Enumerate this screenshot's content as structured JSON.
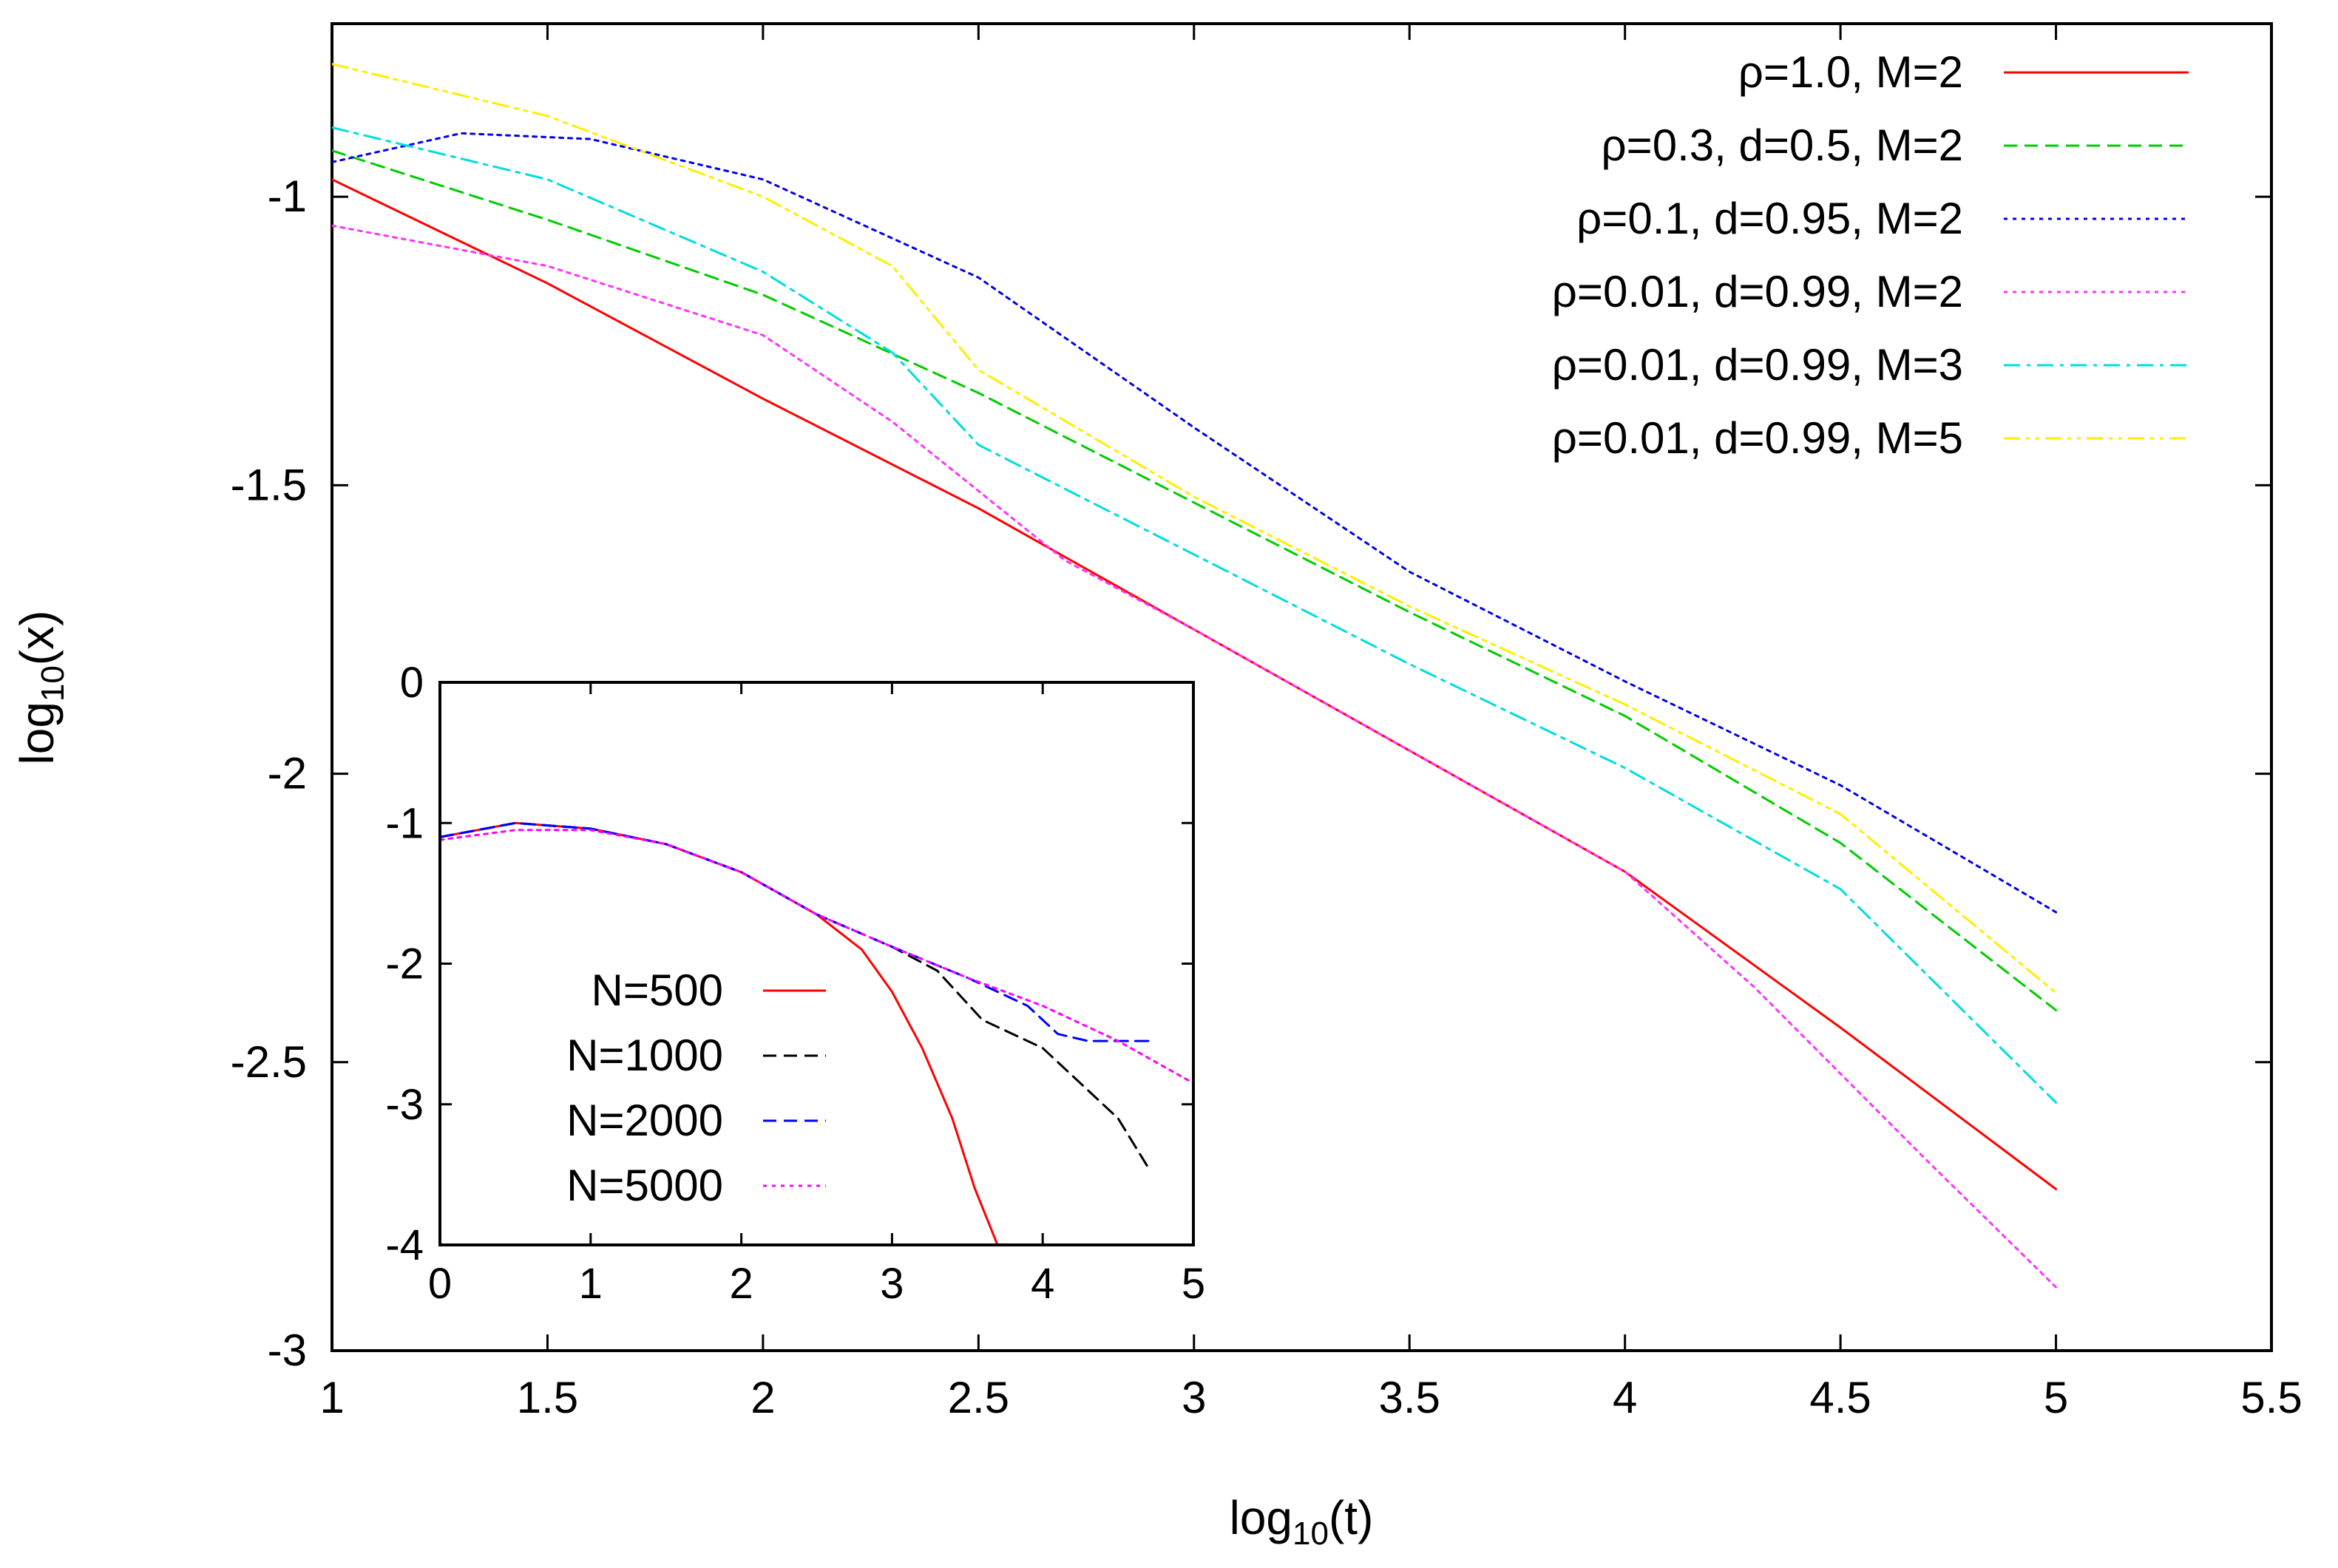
{
  "chart_data": [
    {
      "type": "line",
      "xlabel": "log10(t)",
      "ylabel": "log10(x)",
      "xlim": [
        1,
        5.5
      ],
      "ylim": [
        -3,
        -0.7
      ],
      "xticks": [
        "1",
        "1.5",
        "2",
        "2.5",
        "3",
        "3.5",
        "4",
        "4.5",
        "5",
        "5.5"
      ],
      "yticks": [
        "-1",
        "-1.5",
        "-2",
        "-2.5",
        "-3"
      ],
      "legend_position": "top-right",
      "series": [
        {
          "name": "ρ=1.0, M=2",
          "color": "#ff0000",
          "dash": "solid",
          "x": [
            1,
            1.25,
            1.5,
            2,
            2.5,
            3,
            3.5,
            4,
            4.5,
            5
          ],
          "y": [
            -0.97,
            -1.06,
            -1.15,
            -1.35,
            -1.54,
            -1.75,
            -1.96,
            -2.17,
            -2.44,
            -2.72
          ]
        },
        {
          "name": "ρ=0.3, d=0.5, M=2",
          "color": "#00cc00",
          "dash": "dash",
          "x": [
            1,
            1.5,
            2,
            2.5,
            3,
            3.5,
            4,
            4.5,
            5
          ],
          "y": [
            -0.92,
            -1.04,
            -1.17,
            -1.34,
            -1.53,
            -1.72,
            -1.9,
            -2.12,
            -2.41
          ]
        },
        {
          "name": "ρ=0.1, d=0.95, M=2",
          "color": "#0000ee",
          "dash": "dot",
          "x": [
            1,
            1.3,
            1.6,
            2,
            2.5,
            3,
            3.5,
            4,
            4.5,
            5
          ],
          "y": [
            -0.94,
            -0.89,
            -0.9,
            -0.97,
            -1.14,
            -1.4,
            -1.65,
            -1.84,
            -2.02,
            -2.24
          ]
        },
        {
          "name": "ρ=0.01, d=0.99, M=2",
          "color": "#ff33ff",
          "dash": "dot",
          "x": [
            1,
            1.5,
            2,
            2.3,
            2.7,
            3,
            3.5,
            4,
            4.3,
            4.5,
            4.7,
            5
          ],
          "y": [
            -1.05,
            -1.12,
            -1.24,
            -1.39,
            -1.63,
            -1.75,
            -1.96,
            -2.17,
            -2.37,
            -2.52,
            -2.67,
            -2.89
          ]
        },
        {
          "name": "ρ=0.01, d=0.99, M=3",
          "color": "#00dddd",
          "dash": "dashdot",
          "x": [
            1,
            1.5,
            2,
            2.3,
            2.5,
            3,
            3.5,
            4,
            4.5,
            5
          ],
          "y": [
            -0.88,
            -0.97,
            -1.13,
            -1.27,
            -1.43,
            -1.62,
            -1.81,
            -1.99,
            -2.2,
            -2.57
          ]
        },
        {
          "name": "ρ=0.01, d=0.99, M=5",
          "color": "#ffee00",
          "dash": "dashdotdot",
          "x": [
            1,
            1.5,
            2,
            2.3,
            2.5,
            3,
            3.5,
            4,
            4.5,
            5
          ],
          "y": [
            -0.77,
            -0.86,
            -1.0,
            -1.12,
            -1.3,
            -1.52,
            -1.71,
            -1.88,
            -2.07,
            -2.38
          ]
        }
      ]
    },
    {
      "type": "line",
      "title": "inset",
      "xlim": [
        0,
        5
      ],
      "ylim": [
        -4,
        0
      ],
      "xticks": [
        "0",
        "1",
        "2",
        "3",
        "4",
        "5"
      ],
      "yticks": [
        "0",
        "-1",
        "-2",
        "-3",
        "-4"
      ],
      "legend_position": "bottom-left",
      "series": [
        {
          "name": "N=500",
          "color": "#ff0000",
          "dash": "solid",
          "x": [
            0,
            0.5,
            1,
            1.5,
            2,
            2.5,
            2.8,
            3.0,
            3.2,
            3.4,
            3.55,
            3.7
          ],
          "y": [
            -1.1,
            -1.0,
            -1.04,
            -1.15,
            -1.35,
            -1.65,
            -1.9,
            -2.2,
            -2.6,
            -3.1,
            -3.6,
            -4.0
          ]
        },
        {
          "name": "N=1000",
          "color": "#000000",
          "dash": "dash",
          "x": [
            0,
            0.5,
            1,
            1.5,
            2,
            2.5,
            3,
            3.3,
            3.6,
            4,
            4.3,
            4.5,
            4.7
          ],
          "y": [
            -1.1,
            -1.0,
            -1.04,
            -1.15,
            -1.35,
            -1.65,
            -1.88,
            -2.05,
            -2.4,
            -2.6,
            -2.9,
            -3.1,
            -3.45
          ]
        },
        {
          "name": "N=2000",
          "color": "#0000ff",
          "dash": "dash",
          "x": [
            0,
            0.5,
            1,
            1.5,
            2,
            2.5,
            3,
            3.5,
            3.9,
            4.1,
            4.3,
            4.7
          ],
          "y": [
            -1.1,
            -1.0,
            -1.04,
            -1.15,
            -1.35,
            -1.65,
            -1.88,
            -2.1,
            -2.3,
            -2.5,
            -2.55,
            -2.55
          ]
        },
        {
          "name": "N=5000",
          "color": "#ff00ff",
          "dash": "dot",
          "x": [
            0,
            0.5,
            1,
            1.5,
            2,
            2.5,
            3,
            3.5,
            4,
            4.5,
            5
          ],
          "y": [
            -1.12,
            -1.05,
            -1.05,
            -1.15,
            -1.35,
            -1.65,
            -1.88,
            -2.1,
            -2.3,
            -2.55,
            -2.85
          ]
        }
      ]
    }
  ]
}
